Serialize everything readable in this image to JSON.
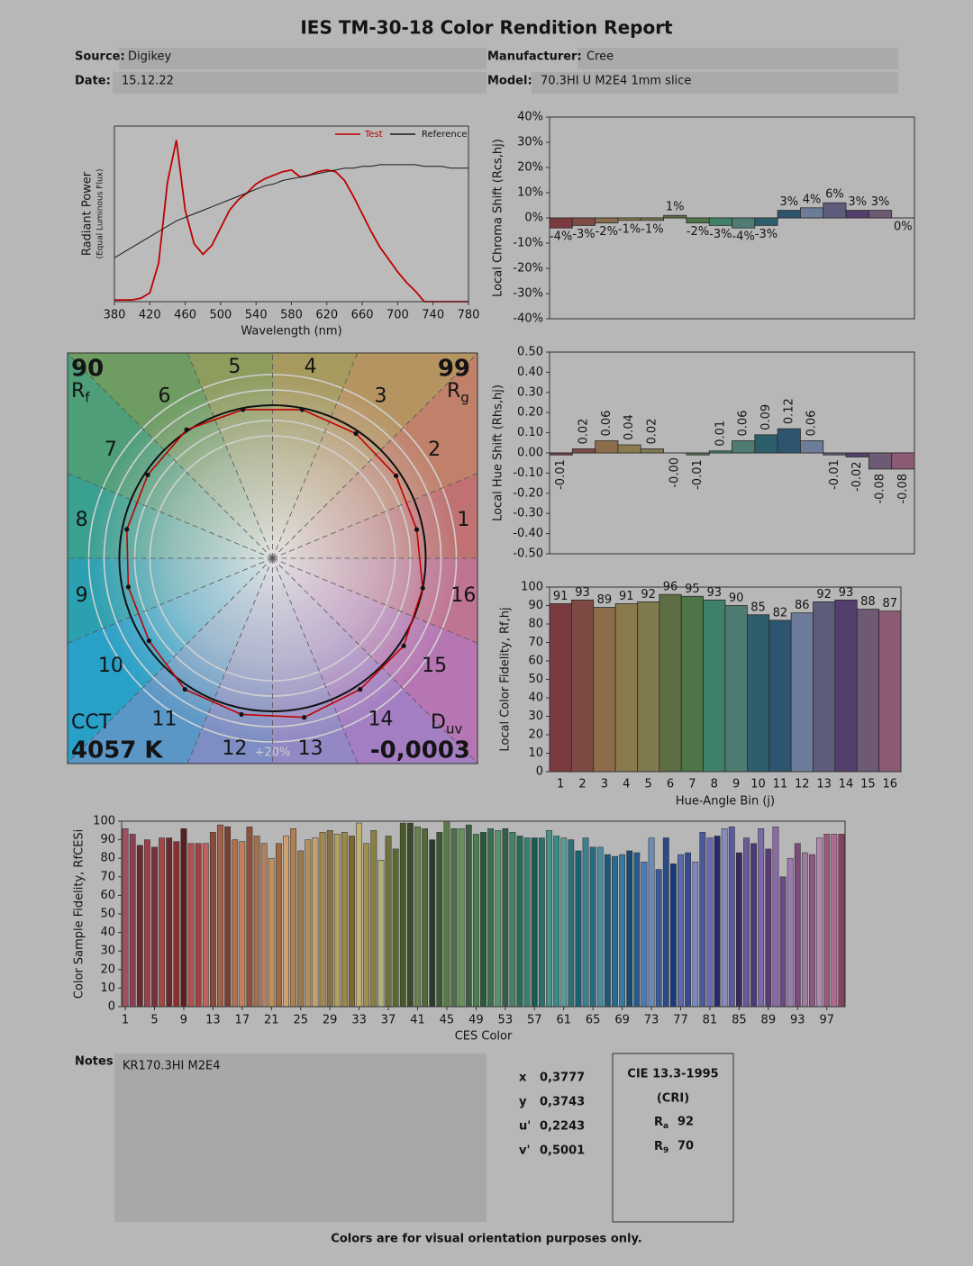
{
  "header": {
    "title": "IES TM-30-18 Color Rendition Report",
    "fields": [
      {
        "label": "Source:",
        "value": "Digikey"
      },
      {
        "label": "Manufacturer:",
        "value": "Cree"
      },
      {
        "label": "Date:",
        "value": "15.12.22"
      },
      {
        "label": "Model:",
        "value": "70.3HI U M2E4 1mm slice"
      }
    ]
  },
  "chart_data": [
    {
      "type": "line",
      "xlabel": "Wavelength (nm)",
      "ylabel": "Radiant Power",
      "ylabel_note": "(Equal Luminous Flux)",
      "x": [
        380,
        390,
        400,
        410,
        420,
        430,
        440,
        450,
        460,
        470,
        480,
        490,
        500,
        510,
        520,
        530,
        540,
        550,
        560,
        570,
        580,
        590,
        600,
        610,
        620,
        630,
        640,
        650,
        660,
        670,
        680,
        690,
        700,
        710,
        720,
        730,
        740,
        750,
        760,
        770,
        780
      ],
      "xlim": [
        380,
        780
      ],
      "xticks": [
        380,
        420,
        460,
        500,
        540,
        580,
        620,
        660,
        700,
        740,
        780
      ],
      "ylim": [
        0,
        1
      ],
      "legend": "top-right",
      "series": [
        {
          "name": "Test",
          "color": "#c00000",
          "values": [
            0.01,
            0.01,
            0.01,
            0.02,
            0.05,
            0.22,
            0.68,
            0.92,
            0.52,
            0.33,
            0.27,
            0.32,
            0.42,
            0.52,
            0.58,
            0.62,
            0.67,
            0.7,
            0.72,
            0.74,
            0.75,
            0.71,
            0.72,
            0.74,
            0.75,
            0.74,
            0.69,
            0.6,
            0.5,
            0.4,
            0.31,
            0.24,
            0.17,
            0.11,
            0.06,
            0,
            0,
            0,
            0,
            0,
            0
          ]
        },
        {
          "name": "Reference",
          "color": "#1a1a1a",
          "values": [
            0.25,
            0.28,
            0.31,
            0.34,
            0.37,
            0.4,
            0.43,
            0.46,
            0.48,
            0.5,
            0.52,
            0.54,
            0.56,
            0.58,
            0.6,
            0.62,
            0.64,
            0.66,
            0.67,
            0.69,
            0.7,
            0.71,
            0.72,
            0.73,
            0.74,
            0.75,
            0.76,
            0.76,
            0.77,
            0.77,
            0.78,
            0.78,
            0.78,
            0.78,
            0.78,
            0.77,
            0.77,
            0.77,
            0.76,
            0.76,
            0.76
          ]
        }
      ]
    },
    {
      "type": "bar",
      "ylabel": "Local Chroma Shift (Rcs,hj)",
      "values": [
        -4,
        -3,
        -2,
        -1,
        -1,
        1,
        -2,
        -3,
        -4,
        -3,
        3,
        4,
        6,
        3,
        3,
        0
      ],
      "value_labels": [
        "-4%",
        "-3%",
        "-2%",
        "-1%",
        "-1%",
        "1%",
        "-2%",
        "-3%",
        "-4%",
        "-3%",
        "3%",
        "4%",
        "6%",
        "3%",
        "3%",
        "0%"
      ],
      "colors": [
        "#7b3a40",
        "#7e4a44",
        "#8d6c4c",
        "#8a7a4e",
        "#7f7a4e",
        "#5e6e44",
        "#4e7448",
        "#3f8068",
        "#4f7c72",
        "#2c5e6c",
        "#2e5570",
        "#6d7c9a",
        "#5d5c7a",
        "#543e6e",
        "#6e5a74",
        "#8c5a74"
      ],
      "ylim": [
        -40,
        40
      ],
      "yticks": [
        {
          "value": 40,
          "label": "40%"
        },
        {
          "value": 30,
          "label": "30%"
        },
        {
          "value": 20,
          "label": "20%"
        },
        {
          "value": 10,
          "label": "10%"
        },
        {
          "value": 0,
          "label": "0%"
        },
        {
          "value": -10,
          "label": "-10%"
        },
        {
          "value": -20,
          "label": "-20%"
        },
        {
          "value": -30,
          "label": "-30%"
        },
        {
          "value": -40,
          "label": "-40%"
        }
      ]
    },
    {
      "type": "bar",
      "ylabel": "Local Hue Shift (Rhs,hj)",
      "values": [
        -0.01,
        0.02,
        0.06,
        0.04,
        0.02,
        0,
        -0.01,
        0.01,
        0.06,
        0.09,
        0.12,
        0.06,
        -0.01,
        -0.02,
        -0.08,
        -0.08
      ],
      "value_labels": [
        "-0.01",
        "0.02",
        "0.06",
        "0.04",
        "0.02",
        "-0.00",
        "-0.01",
        "0.01",
        "0.06",
        "0.09",
        "0.12",
        "0.06",
        "-0.01",
        "-0.02",
        "-0.08",
        "-0.08"
      ],
      "colors": [
        "#7b3a40",
        "#7e4a44",
        "#8d6c4c",
        "#8a7a4e",
        "#7f7a4e",
        "#5e6e44",
        "#4e7448",
        "#3f8068",
        "#4f7c72",
        "#2c5e6c",
        "#2e5570",
        "#6d7c9a",
        "#5d5c7a",
        "#543e6e",
        "#6e5a74",
        "#8c5a74"
      ],
      "ylim": [
        -0.5,
        0.5
      ],
      "yticks": [
        {
          "value": 0.5,
          "label": "0.50"
        },
        {
          "value": 0.4,
          "label": "0.40"
        },
        {
          "value": 0.3,
          "label": "0.30"
        },
        {
          "value": 0.2,
          "label": "0.20"
        },
        {
          "value": 0.1,
          "label": "0.10"
        },
        {
          "value": 0,
          "label": "0.00"
        },
        {
          "value": -0.1,
          "label": "-0.10"
        },
        {
          "value": -0.2,
          "label": "-0.20"
        },
        {
          "value": -0.3,
          "label": "-0.30"
        },
        {
          "value": -0.4,
          "label": "-0.40"
        },
        {
          "value": -0.5,
          "label": "-0.50"
        }
      ]
    },
    {
      "type": "bar",
      "xlabel": "Hue-Angle Bin (j)",
      "ylabel": "Local Color Fidelity, Rf,hj",
      "categories": [
        1,
        2,
        3,
        4,
        5,
        6,
        7,
        8,
        9,
        10,
        11,
        12,
        13,
        14,
        15,
        16
      ],
      "values": [
        91,
        93,
        89,
        91,
        92,
        96,
        95,
        93,
        90,
        85,
        82,
        86,
        92,
        93,
        88,
        87
      ],
      "colors": [
        "#7b3a40",
        "#7e4a44",
        "#8d6c4c",
        "#8a7a4e",
        "#7f7a4e",
        "#5e6e44",
        "#4e7448",
        "#3f8068",
        "#4f7c72",
        "#2c5e6c",
        "#2e5570",
        "#6d7c9a",
        "#5d5c7a",
        "#543e6e",
        "#6e5a74",
        "#8c5a74"
      ],
      "ylim": [
        0,
        100
      ],
      "yticks": [
        0,
        10,
        20,
        30,
        40,
        50,
        60,
        70,
        80,
        90,
        100
      ]
    },
    {
      "type": "vector",
      "rf": 90,
      "rf_symbol": "R",
      "rf_subscript": "f",
      "rg": 99,
      "rg_symbol": "R",
      "rg_subscript": "g",
      "cct_label": "CCT",
      "cct": "4057 K",
      "duv_symbol": "D",
      "duv_subscript": "uv",
      "duv": "-0,0003",
      "ring_label": "+20%",
      "bins": [
        1,
        2,
        3,
        4,
        5,
        6,
        7,
        8,
        9,
        10,
        11,
        12,
        13,
        14,
        15,
        16
      ],
      "test": [
        0.96,
        0.97,
        0.98,
        0.99,
        0.99,
        1.01,
        0.98,
        0.97,
        0.96,
        0.97,
        1.03,
        1.04,
        1.06,
        1.03,
        1.03,
        1.0
      ],
      "test_color": "#c00000",
      "reference_color": "#111111",
      "background_colors": [
        "#c07272",
        "#c0806a",
        "#b69462",
        "#a69a5e",
        "#8e9c5e",
        "#6e9c62",
        "#4e9e78",
        "#3aa090",
        "#2aa0b0",
        "#28a0c8",
        "#5a96c6",
        "#7e8ec4",
        "#9488c4",
        "#a47ec2",
        "#b676b4",
        "#c07494"
      ]
    },
    {
      "type": "bar",
      "xlabel": "CES Color",
      "ylabel": "Color Sample Fidelity, RfCESi",
      "x": [
        1,
        2,
        3,
        4,
        5,
        6,
        7,
        8,
        9,
        10,
        11,
        12,
        13,
        14,
        15,
        16,
        17,
        18,
        19,
        20,
        21,
        22,
        23,
        24,
        25,
        26,
        27,
        28,
        29,
        30,
        31,
        32,
        33,
        34,
        35,
        36,
        37,
        38,
        39,
        40,
        41,
        42,
        43,
        44,
        45,
        46,
        47,
        48,
        49,
        50,
        51,
        52,
        53,
        54,
        55,
        56,
        57,
        58,
        59,
        60,
        61,
        62,
        63,
        64,
        65,
        66,
        67,
        68,
        69,
        70,
        71,
        72,
        73,
        74,
        75,
        76,
        77,
        78,
        79,
        80,
        81,
        82,
        83,
        84,
        85,
        86,
        87,
        88,
        89,
        90,
        91,
        92,
        93,
        94,
        95,
        96,
        97,
        98,
        99
      ],
      "xlim": [
        0.5,
        99.5
      ],
      "xticks": [
        1,
        5,
        9,
        13,
        17,
        21,
        25,
        29,
        33,
        37,
        41,
        45,
        49,
        53,
        57,
        61,
        65,
        69,
        73,
        77,
        81,
        85,
        89,
        93,
        97
      ],
      "values": [
        96,
        93,
        87,
        90,
        86,
        91,
        91,
        89,
        96,
        88,
        88,
        88,
        94,
        98,
        97,
        90,
        89,
        97,
        92,
        88,
        80,
        88,
        92,
        96,
        84,
        90,
        91,
        94,
        95,
        93,
        94,
        92,
        99,
        88,
        95,
        79,
        92,
        85,
        99,
        99,
        97,
        96,
        90,
        94,
        100,
        96,
        96,
        98,
        93,
        94,
        96,
        95,
        96,
        94,
        92,
        91,
        91,
        91,
        95,
        92,
        91,
        90,
        84,
        91,
        86,
        86,
        82,
        81,
        82,
        84,
        83,
        78,
        91,
        74,
        91,
        77,
        82,
        83,
        78,
        94,
        91,
        92,
        96,
        97,
        83,
        91,
        88,
        96,
        85,
        97,
        70,
        80,
        88,
        83,
        82,
        91,
        93,
        93,
        93
      ],
      "colors": [
        "#a05060",
        "#8a4050",
        "#6a2a30",
        "#9a4048",
        "#7a3038",
        "#a04848",
        "#6a2828",
        "#8a3030",
        "#5a2020",
        "#b05050",
        "#a04040",
        "#c06060",
        "#8a4a38",
        "#a06048",
        "#7a4030",
        "#b07050",
        "#c08060",
        "#905038",
        "#a07050",
        "#b08060",
        "#c0905a",
        "#a06a40",
        "#d0a070",
        "#b08050",
        "#9a7a50",
        "#b09060",
        "#c0a070",
        "#a08850",
        "#8a7040",
        "#b0a060",
        "#9a8a4a",
        "#7a6a30",
        "#c0b070",
        "#a09050",
        "#8a8040",
        "#b0b080",
        "#707040",
        "#5a6a30",
        "#4a5a28",
        "#3a4a28",
        "#6a8050",
        "#506a38",
        "#2a3a28",
        "#3a5a30",
        "#5a7a48",
        "#4a7048",
        "#6a9060",
        "#3a6040",
        "#4a8050",
        "#2a5a38",
        "#3a7050",
        "#5a9070",
        "#306048",
        "#4a8068",
        "#2a6a58",
        "#3a8070",
        "#1a5a50",
        "#2a7068",
        "#4a9088",
        "#3a8a88",
        "#5a9a98",
        "#2a7078",
        "#1a6070",
        "#3a8090",
        "#2a6a80",
        "#4a8aa0",
        "#1a5a78",
        "#2a6a90",
        "#3a7aa0",
        "#1a4a70",
        "#2a5a88",
        "#4a7ab0",
        "#6a8ab8",
        "#3a5a98",
        "#2a4a88",
        "#1a3a78",
        "#5a6aa8",
        "#3a4a90",
        "#7a8ac0",
        "#4a5a98",
        "#6a6ab0",
        "#2a2a68",
        "#8a8ac0",
        "#5a5aa0",
        "#3a2a60",
        "#6a5a98",
        "#4a3a78",
        "#7a6aa8",
        "#5a3a78",
        "#8a6aa8",
        "#6a4a80",
        "#9a7ab0",
        "#7a4a78",
        "#a07aa0",
        "#8a5a80",
        "#b08ab0",
        "#9a5a80",
        "#b06a90",
        "#8a4060"
      ],
      "ylim": [
        0,
        100
      ],
      "yticks": [
        0,
        10,
        20,
        30,
        40,
        50,
        60,
        70,
        80,
        90,
        100
      ]
    }
  ],
  "notes": {
    "label": "Notes:",
    "text": "KR170.3HI M2E4"
  },
  "chromaticity": [
    {
      "label": "x",
      "value": "0,3777"
    },
    {
      "label": "y",
      "value": "0,3743"
    },
    {
      "label": "u'",
      "value": "0,2243"
    },
    {
      "label": "v'",
      "value": "0,5001"
    }
  ],
  "cri": {
    "title": "CIE 13.3-1995",
    "subtitle": "(CRI)",
    "items": [
      {
        "symbol": "R",
        "subscript": "a",
        "value": 92
      },
      {
        "symbol": "R",
        "subscript": "9",
        "value": 70
      }
    ]
  },
  "footer": "Colors are for visual orientation purposes only."
}
